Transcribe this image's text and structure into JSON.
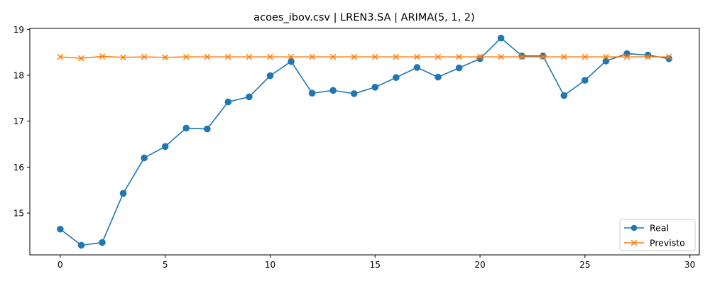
{
  "chart_data": {
    "type": "line",
    "title": "acoes_ibov.csv | LREN3.SA | ARIMA(5, 1, 2)",
    "xlabel": "",
    "ylabel": "",
    "xlim": [
      -1.45,
      30.45
    ],
    "ylim": [
      14.09,
      19.02
    ],
    "x_ticks": [
      0,
      5,
      10,
      15,
      20,
      25,
      30
    ],
    "y_ticks": [
      15,
      16,
      17,
      18,
      19
    ],
    "grid": false,
    "legend_position": "lower-right",
    "x": [
      0,
      1,
      2,
      3,
      4,
      5,
      6,
      7,
      8,
      9,
      10,
      11,
      12,
      13,
      14,
      15,
      16,
      17,
      18,
      19,
      20,
      21,
      22,
      23,
      24,
      25,
      26,
      27,
      28,
      29
    ],
    "series": [
      {
        "name": "Real",
        "color": "#1f77b4",
        "marker": "circle",
        "values": [
          14.65,
          14.3,
          14.36,
          15.43,
          16.2,
          16.45,
          16.85,
          16.83,
          17.42,
          17.53,
          17.99,
          18.3,
          17.61,
          17.67,
          17.6,
          17.74,
          17.95,
          18.17,
          17.96,
          18.16,
          18.36,
          18.81,
          18.42,
          18.42,
          17.56,
          17.89,
          18.31,
          18.47,
          18.44,
          18.36
        ]
      },
      {
        "name": "Previsto",
        "color": "#ff7f0e",
        "marker": "x",
        "values": [
          18.4,
          18.37,
          18.41,
          18.39,
          18.4,
          18.39,
          18.4,
          18.4,
          18.4,
          18.4,
          18.4,
          18.4,
          18.4,
          18.4,
          18.4,
          18.4,
          18.4,
          18.4,
          18.4,
          18.4,
          18.4,
          18.4,
          18.4,
          18.4,
          18.4,
          18.4,
          18.4,
          18.4,
          18.4,
          18.4
        ]
      }
    ]
  }
}
